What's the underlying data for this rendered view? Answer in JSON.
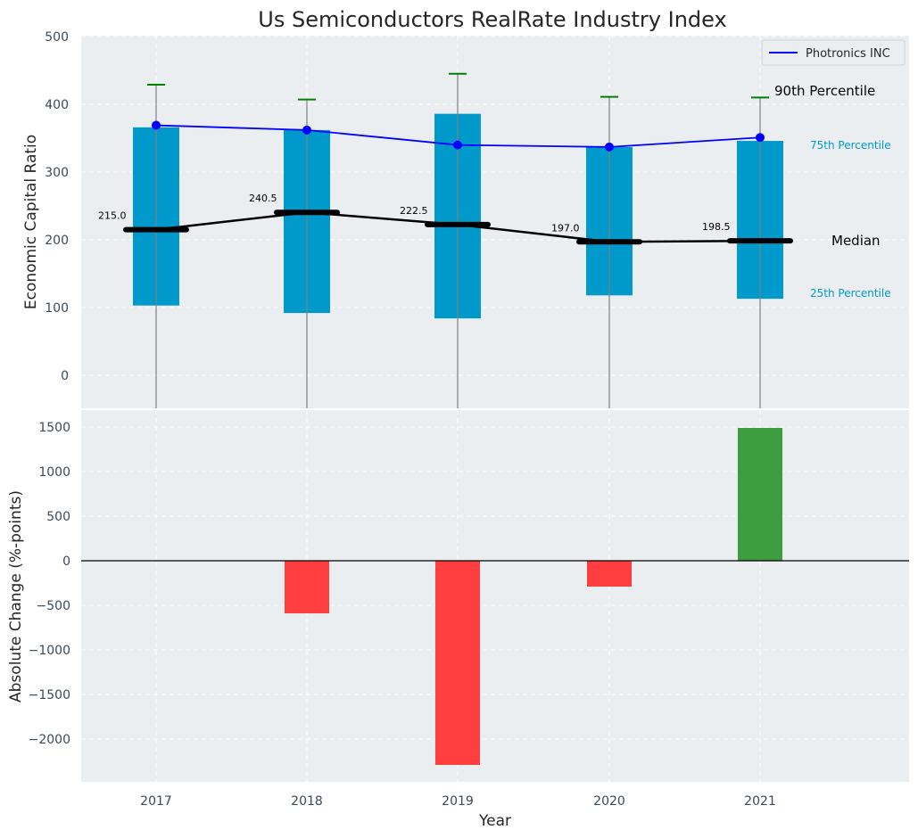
{
  "chart_data": [
    {
      "type": "bar",
      "title": "Us Semiconductors RealRate Industry Index",
      "ylabel": "Economic Capital Ratio",
      "ylim": [
        -50,
        500
      ],
      "yticks": [
        0,
        100,
        200,
        300,
        400,
        500
      ],
      "categories": [
        "2017",
        "2018",
        "2019",
        "2020",
        "2021"
      ],
      "percentile_25": [
        103,
        92,
        84,
        118,
        113
      ],
      "percentile_75": [
        366,
        362,
        386,
        337,
        346
      ],
      "percentile_90": [
        429,
        407,
        445,
        411,
        410
      ],
      "median": [
        215.0,
        240.5,
        222.5,
        197.0,
        198.5
      ],
      "median_labels": [
        "215.0",
        "240.5",
        "222.5",
        "197.0",
        "198.5"
      ],
      "company_series": {
        "name": "Photronics INC",
        "values": [
          369,
          362,
          340,
          337,
          351
        ]
      },
      "legend": {
        "position": "top-right",
        "entries": [
          "Photronics INC"
        ]
      },
      "annotations": {
        "p90": "90th Percentile",
        "p75": "75th Percentile",
        "median": "Median",
        "p25": "25th Percentile"
      },
      "colors": {
        "box": "#0099cc",
        "company": "#0000ff",
        "median": "#000000",
        "whisker": "#008000",
        "background": "#eaeef0"
      },
      "grid": true
    },
    {
      "type": "bar",
      "xlabel": "Year",
      "ylabel": "Absolute Change (%-points)",
      "ylim": [
        -2450,
        1700
      ],
      "yticks": [
        -2000,
        -1500,
        -1000,
        -500,
        0,
        500,
        1000,
        1500
      ],
      "ytick_labels": [
        "−2000",
        "−1500",
        "−1000",
        "−500",
        "0",
        "500",
        "1000",
        "1500"
      ],
      "categories": [
        "2017",
        "2018",
        "2019",
        "2020",
        "2021"
      ],
      "values": [
        0,
        -590,
        -2290,
        -290,
        1490
      ],
      "colors": {
        "negative": "#ff3f3f",
        "positive": "#3d9c3d",
        "background": "#eaeef0"
      },
      "grid": true
    }
  ]
}
